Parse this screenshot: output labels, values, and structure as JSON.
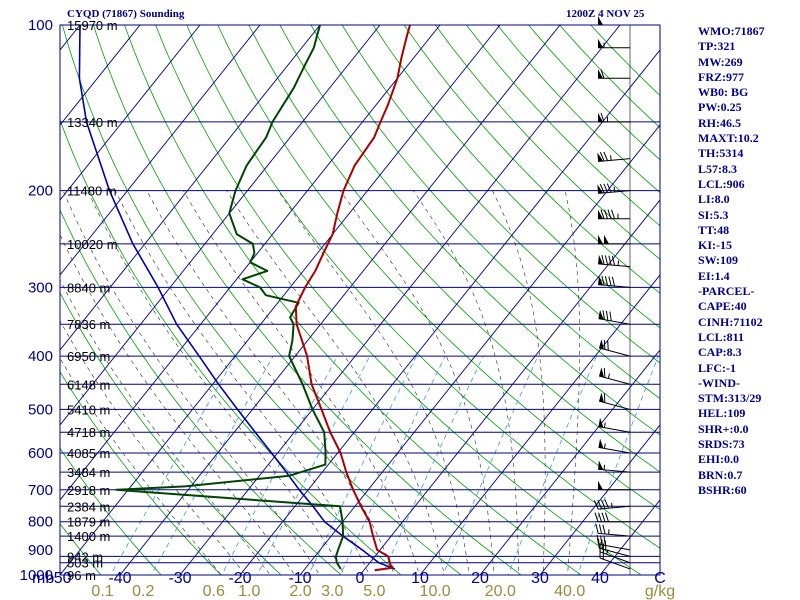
{
  "header": {
    "station_title": "CYQD (71867) Sounding",
    "time_title": "1200Z  4 NOV 25"
  },
  "indices": [
    "WMO:71867",
    "TP:321",
    "MW:269",
    "FRZ:977",
    "WB0: BG",
    "PW:0.25",
    "RH:46.5",
    "MAXT:10.2",
    "TH:5314",
    "L57:8.3",
    "LCL:906",
    "LI:8.0",
    "SI:5.3",
    "TT:48",
    "KI:-15",
    "SW:109",
    "EI:1.4",
    "-PARCEL-",
    "CAPE:40",
    "CINH:71102",
    "LCL:811",
    "CAP:8.3",
    "LFC:-1",
    "-WIND-",
    "STM:313/29",
    "HEL:109",
    "SHR+:0.0",
    "SRDS:73",
    "EHI:0.0",
    "BRN:0.7",
    "BSHR:60"
  ],
  "colors": {
    "frame": "#00008b",
    "isobar": "#00008b",
    "isotherm": "#00008b",
    "dry_adiabat": "#00a000",
    "moist_adiabat": "#2a2a2a",
    "mixing_ratio": "#3a9ad9",
    "temperature": "#aa0000",
    "dewpoint": "#004400",
    "parcel": "#0000aa",
    "mixing_label": "#9b8a3a"
  },
  "chart_data": {
    "type": "skew-t log-p sounding",
    "pressure_axis": {
      "range_hPa": [
        1000,
        100
      ],
      "scale": "log",
      "levels": [
        100,
        200,
        300,
        400,
        500,
        600,
        700,
        800,
        900,
        1000
      ],
      "unit_label": "mb"
    },
    "temperature_axis": {
      "range_C": [
        -50,
        50
      ],
      "ticks": [
        -50,
        -40,
        -30,
        -20,
        -10,
        0,
        10,
        20,
        30,
        40
      ],
      "unit_label": "C"
    },
    "mixing_ratio_axis": {
      "ticks": [
        "0.1",
        "0.2",
        "0.6",
        "1.0",
        "2.0",
        "3.0",
        "5.0",
        "10.0",
        "20.0",
        "40.0"
      ],
      "unit_label": "g/kg"
    },
    "heights": [
      {
        "p": 1000,
        "label": "96 m"
      },
      {
        "p": 950,
        "label": "503 m"
      },
      {
        "p": 925,
        "label": "942 m"
      },
      {
        "p": 850,
        "label": "1400 m"
      },
      {
        "p": 800,
        "label": "1879 m"
      },
      {
        "p": 750,
        "label": "2384 m"
      },
      {
        "p": 700,
        "label": "2918 m"
      },
      {
        "p": 650,
        "label": "3484 m"
      },
      {
        "p": 600,
        "label": "4085 m"
      },
      {
        "p": 550,
        "label": "4718 m"
      },
      {
        "p": 500,
        "label": "5410 m"
      },
      {
        "p": 450,
        "label": "6148 m"
      },
      {
        "p": 400,
        "label": "6950 m"
      },
      {
        "p": 350,
        "label": "7836 m"
      },
      {
        "p": 300,
        "label": "8840 m"
      },
      {
        "p": 250,
        "label": "10020 m"
      },
      {
        "p": 200,
        "label": "11480 m"
      },
      {
        "p": 150,
        "label": "13340 m"
      },
      {
        "p": 100,
        "label": "15970 m"
      }
    ],
    "temperature_profile": [
      {
        "p": 980,
        "t": 1.8
      },
      {
        "p": 970,
        "t": 4.5
      },
      {
        "p": 960,
        "t": 3.8
      },
      {
        "p": 925,
        "t": 2.2
      },
      {
        "p": 900,
        "t": -0.5
      },
      {
        "p": 850,
        "t": -3.0
      },
      {
        "p": 800,
        "t": -5.5
      },
      {
        "p": 750,
        "t": -9.0
      },
      {
        "p": 700,
        "t": -12.5
      },
      {
        "p": 650,
        "t": -16.0
      },
      {
        "p": 600,
        "t": -19.5
      },
      {
        "p": 550,
        "t": -24.0
      },
      {
        "p": 500,
        "t": -28.5
      },
      {
        "p": 450,
        "t": -33.5
      },
      {
        "p": 400,
        "t": -38.0
      },
      {
        "p": 350,
        "t": -44.0
      },
      {
        "p": 325,
        "t": -46.5
      },
      {
        "p": 300,
        "t": -47.5
      },
      {
        "p": 280,
        "t": -48.0
      },
      {
        "p": 260,
        "t": -49.0
      },
      {
        "p": 240,
        "t": -50.0
      },
      {
        "p": 220,
        "t": -52.0
      },
      {
        "p": 200,
        "t": -54.0
      },
      {
        "p": 180,
        "t": -55.5
      },
      {
        "p": 160,
        "t": -56.0
      },
      {
        "p": 150,
        "t": -57.0
      },
      {
        "p": 140,
        "t": -58.0
      },
      {
        "p": 125,
        "t": -60.0
      },
      {
        "p": 115,
        "t": -62.0
      },
      {
        "p": 105,
        "t": -64.0
      },
      {
        "p": 100,
        "t": -65.0
      }
    ],
    "dewpoint_profile": [
      {
        "p": 975,
        "t": -4.0
      },
      {
        "p": 950,
        "t": -5.5
      },
      {
        "p": 925,
        "t": -6.5
      },
      {
        "p": 900,
        "t": -7.0
      },
      {
        "p": 850,
        "t": -8.0
      },
      {
        "p": 800,
        "t": -10.0
      },
      {
        "p": 750,
        "t": -12.5
      },
      {
        "p": 700,
        "t": -52.0
      },
      {
        "p": 690,
        "t": -41.0
      },
      {
        "p": 660,
        "t": -25.0
      },
      {
        "p": 630,
        "t": -20.5
      },
      {
        "p": 600,
        "t": -22.0
      },
      {
        "p": 550,
        "t": -25.0
      },
      {
        "p": 500,
        "t": -30.0
      },
      {
        "p": 450,
        "t": -35.0
      },
      {
        "p": 400,
        "t": -41.0
      },
      {
        "p": 375,
        "t": -42.5
      },
      {
        "p": 350,
        "t": -44.5
      },
      {
        "p": 340,
        "t": -46.0
      },
      {
        "p": 320,
        "t": -46.5
      },
      {
        "p": 310,
        "t": -53.0
      },
      {
        "p": 300,
        "t": -55.0
      },
      {
        "p": 290,
        "t": -59.0
      },
      {
        "p": 280,
        "t": -56.0
      },
      {
        "p": 270,
        "t": -60.0
      },
      {
        "p": 260,
        "t": -60.5
      },
      {
        "p": 250,
        "t": -62.0
      },
      {
        "p": 240,
        "t": -66.0
      },
      {
        "p": 220,
        "t": -70.0
      },
      {
        "p": 200,
        "t": -72.0
      },
      {
        "p": 180,
        "t": -73.5
      },
      {
        "p": 160,
        "t": -74.0
      },
      {
        "p": 150,
        "t": -75.0
      },
      {
        "p": 130,
        "t": -76.0
      },
      {
        "p": 120,
        "t": -77.0
      },
      {
        "p": 110,
        "t": -78.0
      },
      {
        "p": 100,
        "t": -80.0
      }
    ],
    "parcel_profile": [
      {
        "p": 975,
        "t": 5.0
      },
      {
        "p": 950,
        "t": 1.5
      },
      {
        "p": 900,
        "t": -3.0
      },
      {
        "p": 850,
        "t": -8.0
      },
      {
        "p": 800,
        "t": -13.0
      },
      {
        "p": 750,
        "t": -17.0
      },
      {
        "p": 700,
        "t": -21.5
      },
      {
        "p": 650,
        "t": -26.0
      },
      {
        "p": 600,
        "t": -31.0
      },
      {
        "p": 550,
        "t": -36.5
      },
      {
        "p": 500,
        "t": -42.5
      },
      {
        "p": 450,
        "t": -49.0
      },
      {
        "p": 400,
        "t": -56.0
      },
      {
        "p": 350,
        "t": -64.0
      },
      {
        "p": 300,
        "t": -72.0
      },
      {
        "p": 250,
        "t": -82.0
      },
      {
        "p": 200,
        "t": -93.0
      },
      {
        "p": 150,
        "t": -106.0
      },
      {
        "p": 125,
        "t": -113.0
      },
      {
        "p": 100,
        "t": -120.0
      }
    ],
    "wind_profile": [
      {
        "p": 975,
        "dir": 290,
        "spd": 20
      },
      {
        "p": 950,
        "dir": 290,
        "spd": 25
      },
      {
        "p": 925,
        "dir": 285,
        "spd": 30
      },
      {
        "p": 900,
        "dir": 280,
        "spd": 30
      },
      {
        "p": 850,
        "dir": 275,
        "spd": 35
      },
      {
        "p": 800,
        "dir": 270,
        "spd": 40
      },
      {
        "p": 750,
        "dir": 265,
        "spd": 45
      },
      {
        "p": 700,
        "dir": 270,
        "spd": 50
      },
      {
        "p": 650,
        "dir": 275,
        "spd": 55
      },
      {
        "p": 600,
        "dir": 280,
        "spd": 55
      },
      {
        "p": 550,
        "dir": 280,
        "spd": 55
      },
      {
        "p": 500,
        "dir": 285,
        "spd": 60
      },
      {
        "p": 450,
        "dir": 285,
        "spd": 65
      },
      {
        "p": 400,
        "dir": 285,
        "spd": 70
      },
      {
        "p": 350,
        "dir": 280,
        "spd": 80
      },
      {
        "p": 300,
        "dir": 275,
        "spd": 90
      },
      {
        "p": 275,
        "dir": 275,
        "spd": 95
      },
      {
        "p": 250,
        "dir": 270,
        "spd": 100
      },
      {
        "p": 225,
        "dir": 270,
        "spd": 95
      },
      {
        "p": 200,
        "dir": 265,
        "spd": 85
      },
      {
        "p": 175,
        "dir": 265,
        "spd": 75
      },
      {
        "p": 150,
        "dir": 270,
        "spd": 65
      },
      {
        "p": 125,
        "dir": 270,
        "spd": 60
      },
      {
        "p": 110,
        "dir": 270,
        "spd": 55
      },
      {
        "p": 100,
        "dir": 270,
        "spd": 50
      }
    ]
  }
}
